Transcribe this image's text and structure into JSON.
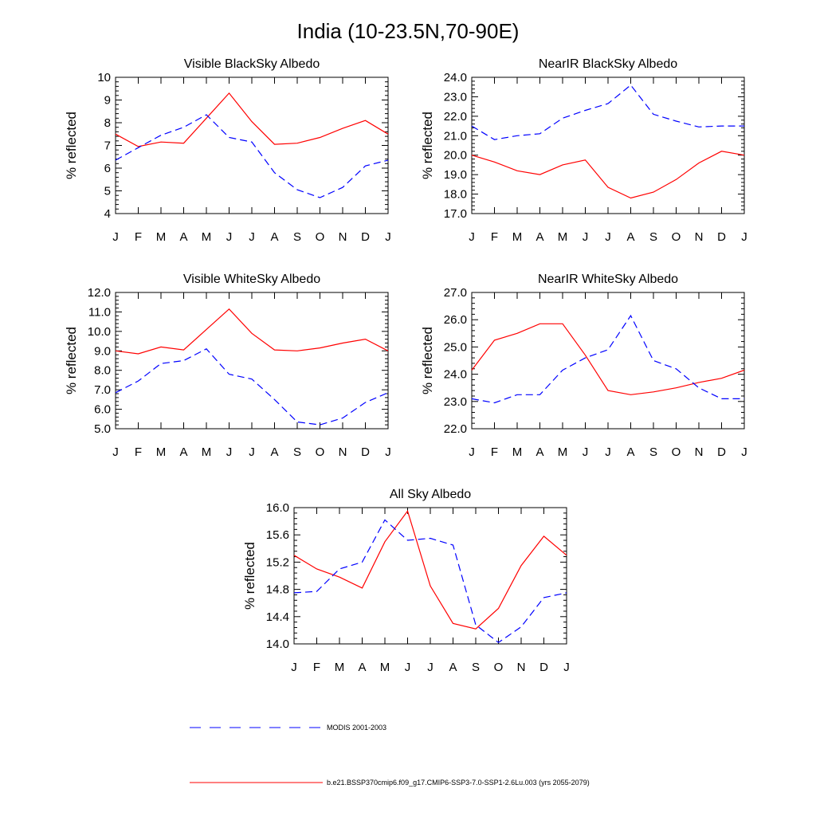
{
  "figure": {
    "title": "India (10-23.5N,70-90E)"
  },
  "legend": {
    "entries": [
      {
        "label": "MODIS 2001-2003",
        "color": "#0000ff",
        "dash": "dashed"
      },
      {
        "label": "b.e21.BSSP370cmip6.f09_g17.CMIP6-SSP3-7.0-SSP1-2.6Lu.003 (yrs 2055-2079)",
        "color": "#ff0000",
        "dash": "solid"
      }
    ]
  },
  "colors": {
    "modis": "#0000ff",
    "model": "#ff0000",
    "axis": "#000000"
  },
  "chart_data": [
    {
      "type": "line",
      "title": "Visible BlackSky Albedo",
      "ylabel": "% reflected",
      "xlabel": "",
      "categories": [
        "J",
        "F",
        "M",
        "A",
        "M",
        "J",
        "J",
        "A",
        "S",
        "O",
        "N",
        "D",
        "J"
      ],
      "ylim": [
        4,
        10
      ],
      "yticks": [
        "4",
        "5",
        "6",
        "7",
        "8",
        "9",
        "10"
      ],
      "series": [
        {
          "key": "model",
          "values": [
            7.5,
            6.95,
            7.15,
            7.1,
            8.2,
            9.3,
            8.05,
            7.05,
            7.1,
            7.35,
            7.75,
            8.1,
            7.5
          ]
        },
        {
          "key": "modis",
          "values": [
            6.35,
            6.9,
            7.45,
            7.8,
            8.35,
            7.35,
            7.15,
            5.8,
            5.05,
            4.7,
            5.15,
            6.1,
            6.35
          ]
        }
      ]
    },
    {
      "type": "line",
      "title": "NearIR BlackSky Albedo",
      "ylabel": "% reflected",
      "xlabel": "",
      "categories": [
        "J",
        "F",
        "M",
        "A",
        "M",
        "J",
        "J",
        "A",
        "S",
        "O",
        "N",
        "D",
        "J"
      ],
      "ylim": [
        17,
        24
      ],
      "yticks": [
        "17.0",
        "18.0",
        "19.0",
        "20.0",
        "21.0",
        "22.0",
        "23.0",
        "24.0"
      ],
      "series": [
        {
          "key": "model",
          "values": [
            20.0,
            19.65,
            19.2,
            19.0,
            19.5,
            19.75,
            18.35,
            17.8,
            18.1,
            18.75,
            19.6,
            20.2,
            20.0
          ]
        },
        {
          "key": "modis",
          "values": [
            21.5,
            20.8,
            21.0,
            21.1,
            21.9,
            22.3,
            22.65,
            23.6,
            22.1,
            21.75,
            21.45,
            21.5,
            21.5
          ]
        }
      ]
    },
    {
      "type": "line",
      "title": "Visible WhiteSky Albedo",
      "ylabel": "% reflected",
      "xlabel": "",
      "categories": [
        "J",
        "F",
        "M",
        "A",
        "M",
        "J",
        "J",
        "A",
        "S",
        "O",
        "N",
        "D",
        "J"
      ],
      "ylim": [
        5,
        12
      ],
      "yticks": [
        "5.0",
        "6.0",
        "7.0",
        "8.0",
        "9.0",
        "10.0",
        "11.0",
        "12.0"
      ],
      "series": [
        {
          "key": "model",
          "values": [
            9.0,
            8.85,
            9.2,
            9.05,
            10.1,
            11.15,
            9.9,
            9.05,
            9.0,
            9.15,
            9.4,
            9.6,
            9.0
          ]
        },
        {
          "key": "modis",
          "values": [
            6.85,
            7.45,
            8.35,
            8.5,
            9.1,
            7.8,
            7.55,
            6.5,
            5.35,
            5.2,
            5.55,
            6.35,
            6.85
          ]
        }
      ]
    },
    {
      "type": "line",
      "title": "NearIR WhiteSky Albedo",
      "ylabel": "% reflected",
      "xlabel": "",
      "categories": [
        "J",
        "F",
        "M",
        "A",
        "M",
        "J",
        "J",
        "A",
        "S",
        "O",
        "N",
        "D",
        "J"
      ],
      "ylim": [
        22,
        27
      ],
      "yticks": [
        "22.0",
        "23.0",
        "24.0",
        "25.0",
        "26.0",
        "27.0"
      ],
      "series": [
        {
          "key": "model",
          "values": [
            24.15,
            25.25,
            25.5,
            25.85,
            25.85,
            24.7,
            23.4,
            23.25,
            23.35,
            23.5,
            23.7,
            23.85,
            24.15
          ]
        },
        {
          "key": "modis",
          "values": [
            23.1,
            22.95,
            23.25,
            23.25,
            24.15,
            24.6,
            24.9,
            26.15,
            24.5,
            24.2,
            23.5,
            23.1,
            23.1
          ]
        }
      ]
    },
    {
      "type": "line",
      "title": "All Sky Albedo",
      "ylabel": "% reflected",
      "xlabel": "",
      "categories": [
        "J",
        "F",
        "M",
        "A",
        "M",
        "J",
        "J",
        "A",
        "S",
        "O",
        "N",
        "D",
        "J"
      ],
      "ylim": [
        14.0,
        16.0
      ],
      "yticks": [
        "14.0",
        "14.4",
        "14.8",
        "15.2",
        "15.6",
        "16.0"
      ],
      "series": [
        {
          "key": "model",
          "values": [
            15.3,
            15.1,
            14.98,
            14.82,
            15.5,
            15.95,
            14.85,
            14.3,
            14.22,
            14.52,
            15.15,
            15.58,
            15.3
          ]
        },
        {
          "key": "modis",
          "values": [
            14.75,
            14.77,
            15.1,
            15.2,
            15.82,
            15.52,
            15.55,
            15.45,
            14.28,
            14.02,
            14.25,
            14.68,
            14.75
          ]
        }
      ]
    }
  ]
}
